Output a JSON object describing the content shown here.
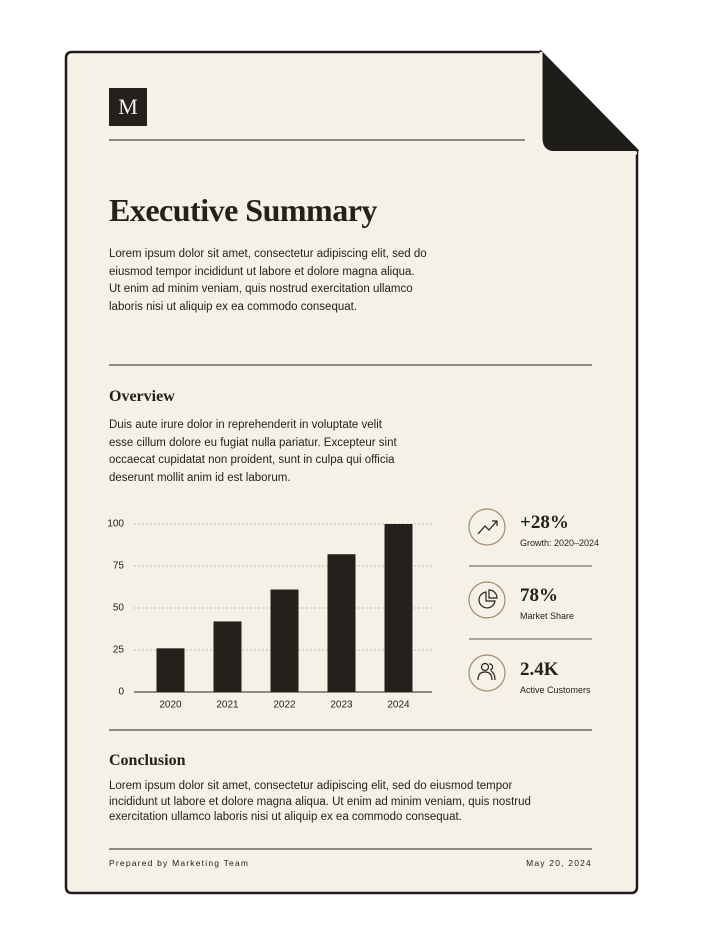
{
  "logo": "M",
  "title": "Executive Summary",
  "intro": "Lorem ipsum dolor sit amet, consectetur adipiscing elit, sed do eiusmod tempor incididunt ut labore et dolore magna aliqua. Ut enim ad minim veniam, quis nostrud exercitation ullamco laboris nisi ut aliquip ex ea commodo consequat.",
  "overview": {
    "heading": "Overview",
    "text": "Duis aute irure dolor in reprehenderit in voluptate velit esse cillum dolore eu fugiat nulla pariatur. Excepteur sint occaecat cupidatat non proident, sunt in culpa qui officia deserunt mollit anim id est laborum."
  },
  "chart_data": {
    "type": "bar",
    "categories": [
      "2020",
      "2021",
      "2022",
      "2023",
      "2024"
    ],
    "values": [
      26,
      42,
      61,
      82,
      100
    ],
    "color": "#24211d",
    "ylim": [
      0,
      100
    ],
    "yticks": [
      0,
      25,
      50,
      75,
      100
    ],
    "grid": true
  },
  "stats": [
    {
      "value": "+28%",
      "label": "Growth: 2020–2024"
    },
    {
      "value": "78%",
      "label": "Market Share"
    },
    {
      "value": "2.4K",
      "label": "Active Customers"
    }
  ],
  "conclusion": {
    "heading": "Conclusion",
    "text": "Lorem ipsum dolor sit amet, consectetur adipiscing elit, sed do eiusmod tempor incididunt ut labore et dolore magna aliqua. Ut enim ad minim veniam, quis nostrud exercitation ullamco laboris nisi ut aliquip ex ea commodo consequat."
  },
  "footer": {
    "left": "Prepared by Marketing Team",
    "right": "May 20, 2024"
  }
}
